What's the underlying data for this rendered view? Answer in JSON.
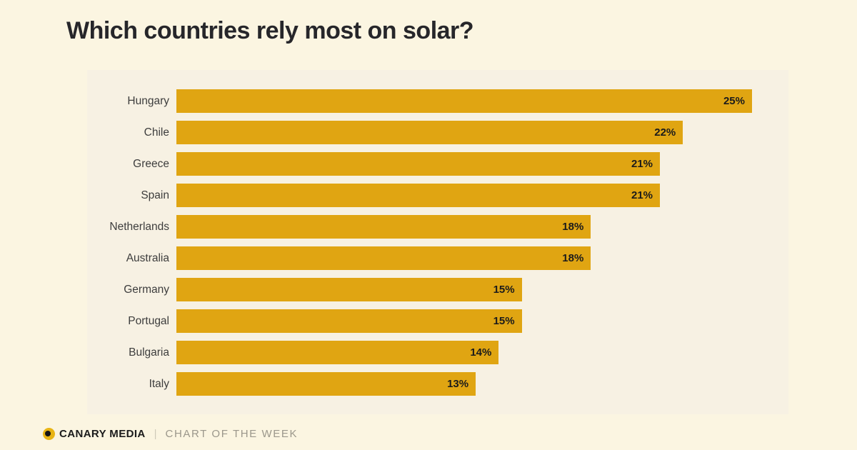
{
  "page": {
    "title": "Which countries rely most on solar?",
    "background": "#fbf5e1",
    "panel_background": "#f7f1e3"
  },
  "footer": {
    "brand": "CANARY MEDIA",
    "divider": "|",
    "tagline": "CHART OF THE WEEK",
    "logo_icon": "canary-media-sun-icon"
  },
  "chart_data": {
    "type": "bar",
    "orientation": "horizontal",
    "title": "Which countries rely most on solar?",
    "categories": [
      "Hungary",
      "Chile",
      "Greece",
      "Spain",
      "Netherlands",
      "Australia",
      "Germany",
      "Portugal",
      "Bulgaria",
      "Italy"
    ],
    "values": [
      25,
      22,
      21,
      21,
      18,
      18,
      15,
      15,
      14,
      13
    ],
    "value_labels": [
      "25%",
      "22%",
      "21%",
      "21%",
      "18%",
      "18%",
      "15%",
      "15%",
      "14%",
      "13%"
    ],
    "unit": "%",
    "xlim": [
      0,
      25
    ],
    "bar_color": "#e0a512",
    "grid": false,
    "legend": false,
    "value_label_position": "inside-right"
  }
}
